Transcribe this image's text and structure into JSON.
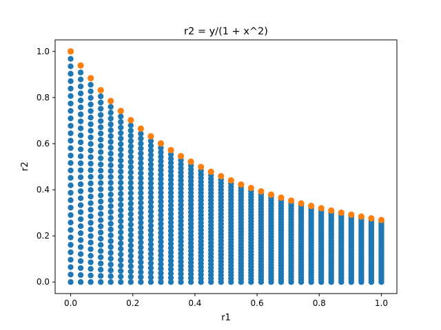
{
  "chart_data": {
    "type": "scatter",
    "title": "r2 = y/(1 + x^2)",
    "xlabel": "r1",
    "ylabel": "r2",
    "xlim": [
      -0.05,
      1.05
    ],
    "ylim": [
      -0.05,
      1.05
    ],
    "x_ticks": [
      "0.0",
      "0.2",
      "0.4",
      "0.6",
      "0.8",
      "1.0"
    ],
    "y_ticks": [
      "0.0",
      "0.2",
      "0.4",
      "0.6",
      "0.8",
      "1.0"
    ],
    "grid": false,
    "colors": {
      "interior": "#1f77b4",
      "boundary": "#ff7f0e"
    },
    "x": [
      0,
      0.0323,
      0.0645,
      0.0968,
      0.129,
      0.1613,
      0.1935,
      0.2258,
      0.2581,
      0.2903,
      0.3226,
      0.3548,
      0.3871,
      0.4194,
      0.4516,
      0.4839,
      0.5161,
      0.5484,
      0.5806,
      0.6129,
      0.6452,
      0.6774,
      0.7097,
      0.7419,
      0.7742,
      0.8065,
      0.8387,
      0.871,
      0.9032,
      0.9355,
      0.9677,
      1.0
    ],
    "series": [
      {
        "values_y_at_top_boundary": [
          1.0,
          0.939,
          0.884,
          0.832,
          0.785,
          0.742,
          0.702,
          0.665,
          0.632,
          0.601,
          0.572,
          0.546,
          0.522,
          0.499,
          0.478,
          0.459,
          0.441,
          0.423,
          0.408,
          0.393,
          0.379,
          0.366,
          0.353,
          0.341,
          0.33,
          0.32,
          0.31,
          0.301,
          0.292,
          0.284,
          0.276,
          0.269
        ],
        "y_points_per_column": 32,
        "y_from": 0.0
      },
      {
        "x": [
          0,
          0.0323,
          0.0645,
          0.0968,
          0.129,
          0.1613,
          0.1935,
          0.2258,
          0.2581,
          0.2903,
          0.3226,
          0.3548,
          0.3871,
          0.4194,
          0.4516,
          0.4839,
          0.5161,
          0.5484,
          0.5806,
          0.6129,
          0.6452,
          0.6774,
          0.7097,
          0.7419,
          0.7742,
          0.8065,
          0.8387,
          0.871,
          0.9032,
          0.9355,
          0.9677,
          1.0
        ],
        "y": [
          1.0,
          0.939,
          0.884,
          0.832,
          0.785,
          0.742,
          0.702,
          0.665,
          0.632,
          0.601,
          0.572,
          0.546,
          0.522,
          0.499,
          0.478,
          0.459,
          0.441,
          0.423,
          0.408,
          0.393,
          0.379,
          0.366,
          0.353,
          0.341,
          0.33,
          0.32,
          0.31,
          0.301,
          0.292,
          0.284,
          0.276,
          0.269
        ]
      }
    ]
  }
}
